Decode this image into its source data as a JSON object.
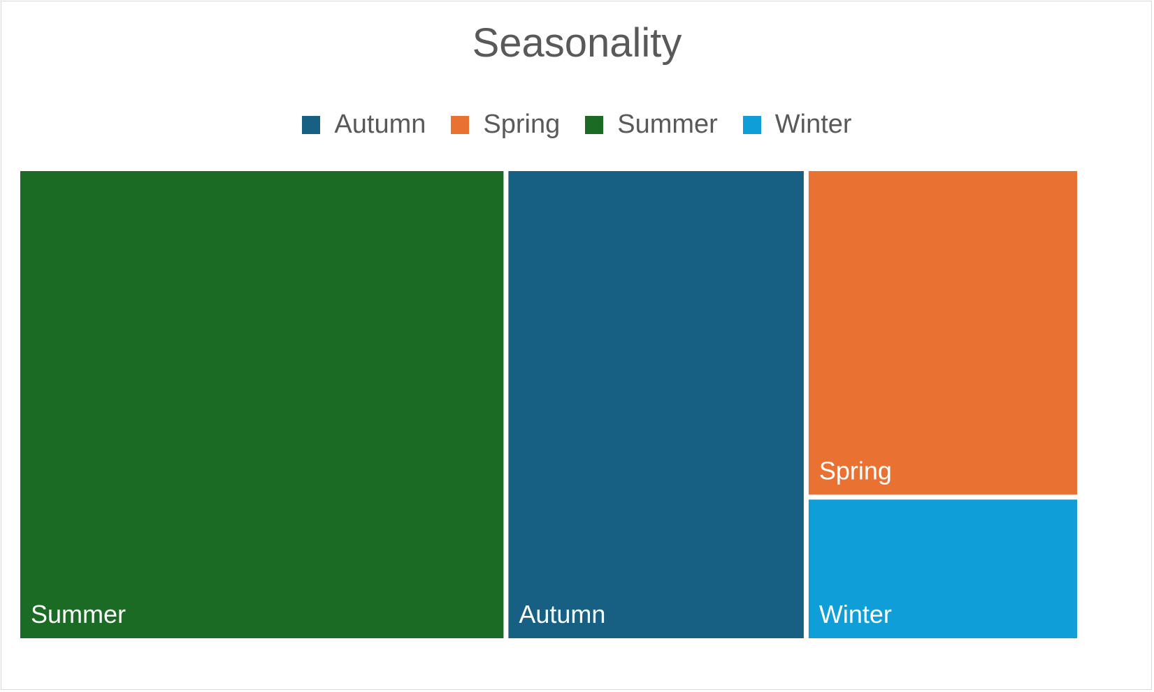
{
  "chart_data": {
    "type": "treemap",
    "title": "Seasonality",
    "legend_position": "top",
    "categories": [
      "Summer",
      "Autumn",
      "Spring",
      "Winter"
    ],
    "values": [
      36,
      22,
      14,
      6
    ],
    "colors": {
      "Autumn": "#176084",
      "Spring": "#e97233",
      "Summer": "#1b6b24",
      "Winter": "#0f9ed7"
    },
    "legend": [
      "Autumn",
      "Spring",
      "Summer",
      "Winter"
    ]
  }
}
